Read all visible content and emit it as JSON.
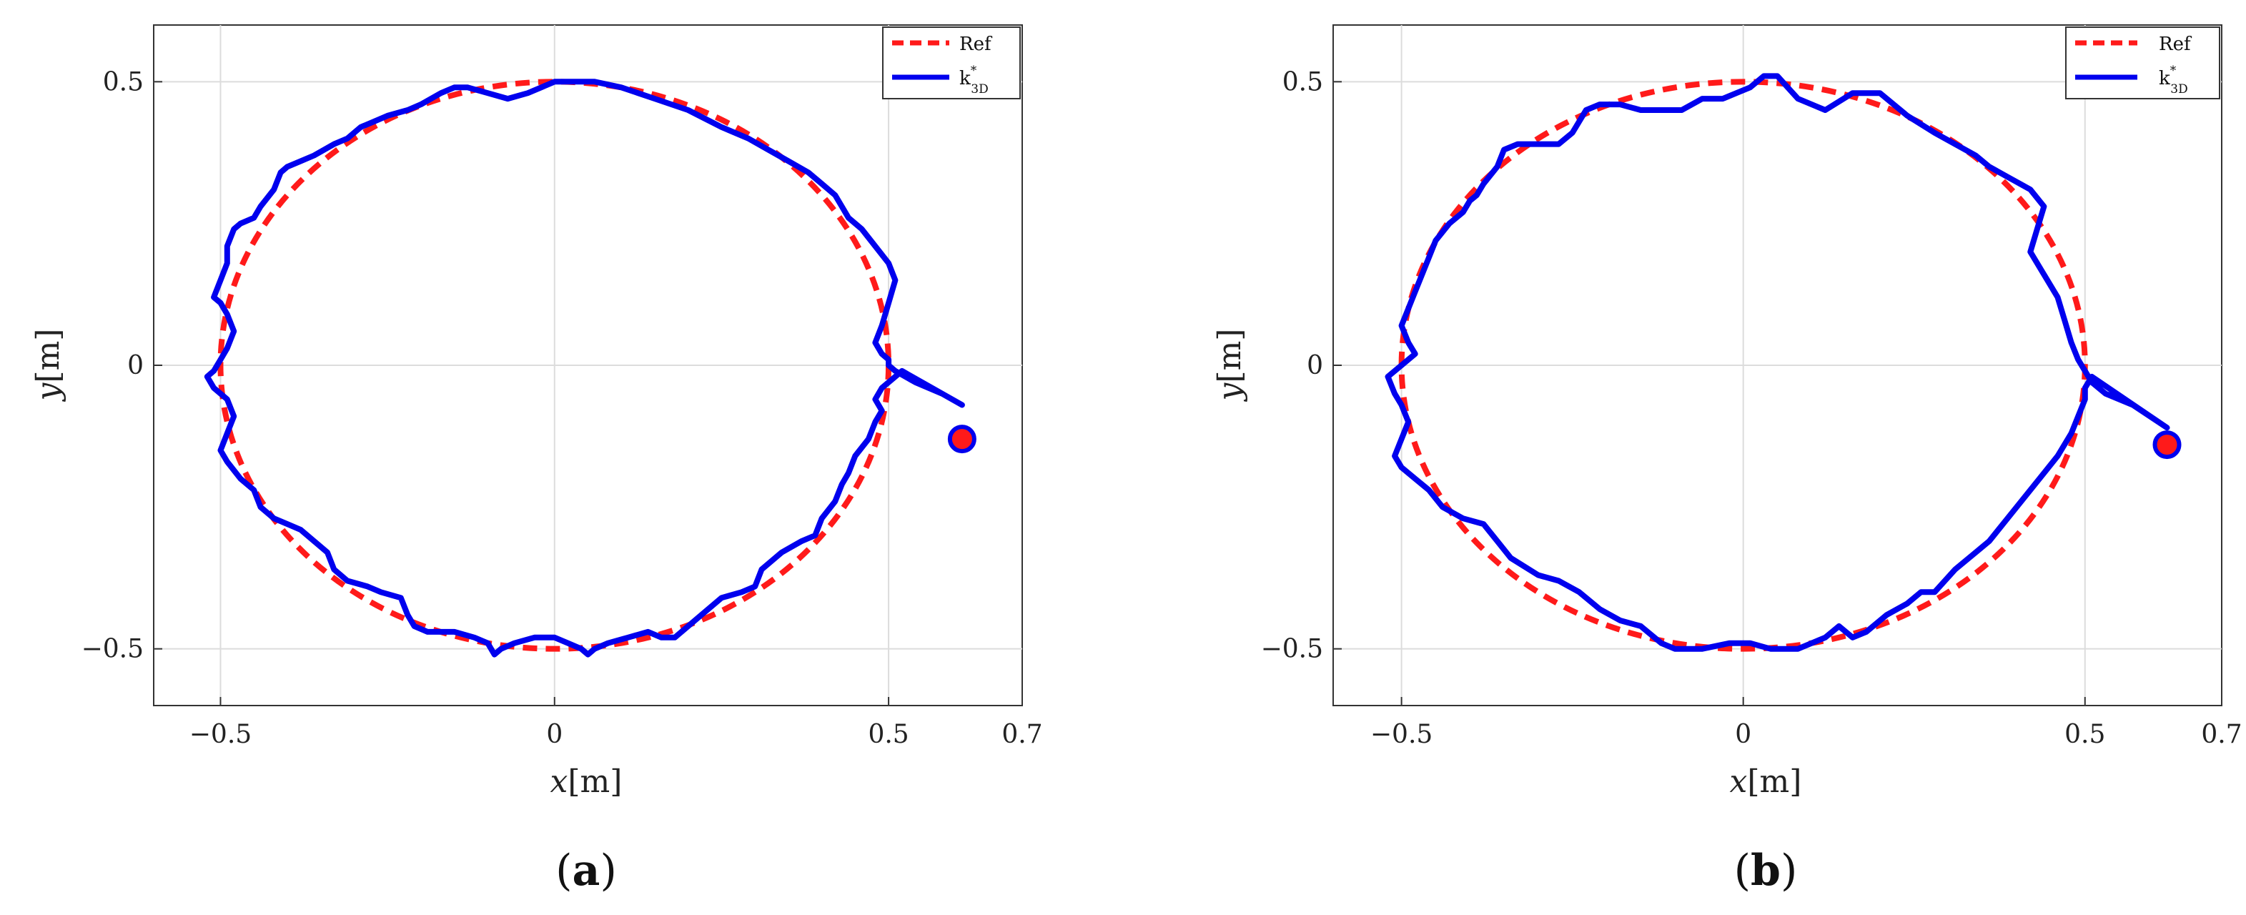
{
  "chart_data": [
    {
      "type": "line",
      "panel": "a",
      "caption_letter": "a",
      "xlabel_var": "x",
      "xlabel_unit": "[m]",
      "ylabel_var": "y",
      "ylabel_unit": "[m]",
      "xlim": [
        -0.6,
        0.7
      ],
      "ylim": [
        -0.6,
        0.6
      ],
      "xticks": [
        -0.5,
        0,
        0.5,
        0.7
      ],
      "xtick_labels": [
        "−0.5",
        "0",
        "0.5",
        "0.7"
      ],
      "yticks": [
        -0.5,
        0,
        0.5
      ],
      "ytick_labels": [
        "−0.5",
        "0",
        "0.5"
      ],
      "grid": true,
      "legend_position": "top-right",
      "series": [
        {
          "name": "Ref",
          "color": "#ff1a1a",
          "style": "dashed",
          "shape": "circle",
          "center": [
            0,
            0
          ],
          "radius": 0.5
        },
        {
          "name": "k*3D",
          "color": "#0000ee",
          "style": "solid",
          "x": [
            0.61,
            0.58,
            0.54,
            0.51,
            0.5,
            0.5,
            0.49,
            0.48,
            0.49,
            0.5,
            0.51,
            0.5,
            0.48,
            0.46,
            0.44,
            0.43,
            0.42,
            0.4,
            0.38,
            0.35,
            0.32,
            0.29,
            0.25,
            0.2,
            0.15,
            0.1,
            0.06,
            0.03,
            0.0,
            -0.02,
            -0.04,
            -0.07,
            -0.1,
            -0.13,
            -0.15,
            -0.17,
            -0.2,
            -0.22,
            -0.25,
            -0.27,
            -0.29,
            -0.31,
            -0.33,
            -0.36,
            -0.38,
            -0.4,
            -0.41,
            -0.42,
            -0.44,
            -0.45,
            -0.47,
            -0.48,
            -0.49,
            -0.49,
            -0.5,
            -0.51,
            -0.5,
            -0.49,
            -0.48,
            -0.49,
            -0.5,
            -0.51,
            -0.52,
            -0.51,
            -0.49,
            -0.48,
            -0.49,
            -0.5,
            -0.49,
            -0.47,
            -0.45,
            -0.44,
            -0.42,
            -0.4,
            -0.38,
            -0.36,
            -0.34,
            -0.33,
            -0.31,
            -0.28,
            -0.26,
            -0.23,
            -0.22,
            -0.21,
            -0.19,
            -0.15,
            -0.12,
            -0.1,
            -0.09,
            -0.08,
            -0.06,
            -0.03,
            0.0,
            0.02,
            0.04,
            0.05,
            0.06,
            0.08,
            0.11,
            0.14,
            0.16,
            0.18,
            0.19,
            0.22,
            0.25,
            0.28,
            0.3,
            0.31,
            0.34,
            0.37,
            0.39,
            0.4,
            0.42,
            0.43,
            0.44,
            0.45,
            0.47,
            0.48,
            0.49,
            0.48,
            0.49,
            0.51,
            0.52
          ],
          "y": [
            -0.07,
            -0.05,
            -0.03,
            -0.01,
            0.0,
            0.01,
            0.02,
            0.04,
            0.07,
            0.11,
            0.15,
            0.18,
            0.21,
            0.24,
            0.26,
            0.28,
            0.3,
            0.32,
            0.34,
            0.36,
            0.38,
            0.4,
            0.42,
            0.45,
            0.47,
            0.49,
            0.5,
            0.5,
            0.5,
            0.49,
            0.48,
            0.47,
            0.48,
            0.49,
            0.49,
            0.48,
            0.46,
            0.45,
            0.44,
            0.43,
            0.42,
            0.4,
            0.39,
            0.37,
            0.36,
            0.35,
            0.34,
            0.31,
            0.28,
            0.26,
            0.25,
            0.24,
            0.21,
            0.18,
            0.15,
            0.12,
            0.11,
            0.09,
            0.06,
            0.03,
            0.01,
            -0.01,
            -0.02,
            -0.04,
            -0.06,
            -0.09,
            -0.12,
            -0.15,
            -0.17,
            -0.2,
            -0.22,
            -0.25,
            -0.27,
            -0.28,
            -0.29,
            -0.31,
            -0.33,
            -0.36,
            -0.38,
            -0.39,
            -0.4,
            -0.41,
            -0.44,
            -0.46,
            -0.47,
            -0.47,
            -0.48,
            -0.49,
            -0.51,
            -0.5,
            -0.49,
            -0.48,
            -0.48,
            -0.49,
            -0.5,
            -0.51,
            -0.5,
            -0.49,
            -0.48,
            -0.47,
            -0.48,
            -0.48,
            -0.47,
            -0.44,
            -0.41,
            -0.4,
            -0.39,
            -0.36,
            -0.33,
            -0.31,
            -0.3,
            -0.27,
            -0.24,
            -0.21,
            -0.19,
            -0.16,
            -0.13,
            -0.1,
            -0.08,
            -0.06,
            -0.04,
            -0.02,
            -0.01
          ],
          "start_marker": [
            0.61,
            -0.13
          ]
        }
      ]
    },
    {
      "type": "line",
      "panel": "b",
      "caption_letter": "b",
      "xlabel_var": "x",
      "xlabel_unit": "[m]",
      "ylabel_var": "y",
      "ylabel_unit": "[m]",
      "xlim": [
        -0.6,
        0.7
      ],
      "ylim": [
        -0.6,
        0.6
      ],
      "xticks": [
        -0.5,
        0,
        0.5,
        0.7
      ],
      "xtick_labels": [
        "−0.5",
        "0",
        "0.5",
        "0.7"
      ],
      "yticks": [
        -0.5,
        0,
        0.5
      ],
      "ytick_labels": [
        "−0.5",
        "0",
        "0.5"
      ],
      "grid": true,
      "legend_position": "top-right",
      "series": [
        {
          "name": "Ref",
          "color": "#ff1a1a",
          "style": "dashed",
          "shape": "circle",
          "center": [
            0,
            0
          ],
          "radius": 0.5
        },
        {
          "name": "k*3D",
          "color": "#0000ee",
          "style": "solid",
          "x": [
            0.62,
            0.57,
            0.53,
            0.51,
            0.5,
            0.49,
            0.48,
            0.47,
            0.46,
            0.44,
            0.42,
            0.43,
            0.44,
            0.42,
            0.39,
            0.36,
            0.34,
            0.31,
            0.28,
            0.24,
            0.2,
            0.16,
            0.12,
            0.08,
            0.05,
            0.03,
            0.01,
            -0.01,
            -0.03,
            -0.06,
            -0.09,
            -0.12,
            -0.15,
            -0.18,
            -0.21,
            -0.23,
            -0.24,
            -0.25,
            -0.27,
            -0.3,
            -0.33,
            -0.35,
            -0.36,
            -0.38,
            -0.39,
            -0.4,
            -0.41,
            -0.43,
            -0.45,
            -0.46,
            -0.47,
            -0.48,
            -0.49,
            -0.5,
            -0.49,
            -0.48,
            -0.5,
            -0.52,
            -0.51,
            -0.5,
            -0.49,
            -0.5,
            -0.51,
            -0.5,
            -0.48,
            -0.46,
            -0.44,
            -0.41,
            -0.38,
            -0.36,
            -0.34,
            -0.3,
            -0.27,
            -0.24,
            -0.21,
            -0.18,
            -0.15,
            -0.12,
            -0.1,
            -0.06,
            -0.02,
            0.01,
            0.04,
            0.08,
            0.12,
            0.14,
            0.16,
            0.18,
            0.21,
            0.24,
            0.26,
            0.28,
            0.31,
            0.34,
            0.36,
            0.38,
            0.4,
            0.42,
            0.44,
            0.46,
            0.48,
            0.49,
            0.5,
            0.5,
            0.51
          ],
          "y": [
            -0.11,
            -0.07,
            -0.05,
            -0.03,
            -0.01,
            0.01,
            0.04,
            0.08,
            0.12,
            0.16,
            0.2,
            0.24,
            0.28,
            0.31,
            0.33,
            0.35,
            0.37,
            0.39,
            0.41,
            0.44,
            0.48,
            0.48,
            0.45,
            0.47,
            0.51,
            0.51,
            0.49,
            0.48,
            0.47,
            0.47,
            0.45,
            0.45,
            0.45,
            0.46,
            0.46,
            0.45,
            0.43,
            0.41,
            0.39,
            0.39,
            0.39,
            0.38,
            0.35,
            0.32,
            0.3,
            0.29,
            0.27,
            0.25,
            0.22,
            0.19,
            0.16,
            0.13,
            0.1,
            0.07,
            0.04,
            0.02,
            0.0,
            -0.02,
            -0.05,
            -0.07,
            -0.1,
            -0.13,
            -0.16,
            -0.18,
            -0.2,
            -0.22,
            -0.25,
            -0.27,
            -0.28,
            -0.31,
            -0.34,
            -0.37,
            -0.38,
            -0.4,
            -0.43,
            -0.45,
            -0.46,
            -0.49,
            -0.5,
            -0.5,
            -0.49,
            -0.49,
            -0.5,
            -0.5,
            -0.48,
            -0.46,
            -0.48,
            -0.47,
            -0.44,
            -0.42,
            -0.4,
            -0.4,
            -0.36,
            -0.33,
            -0.31,
            -0.28,
            -0.25,
            -0.22,
            -0.19,
            -0.16,
            -0.12,
            -0.09,
            -0.06,
            -0.04,
            -0.02
          ],
          "start_marker": [
            0.62,
            -0.14
          ]
        }
      ]
    }
  ]
}
